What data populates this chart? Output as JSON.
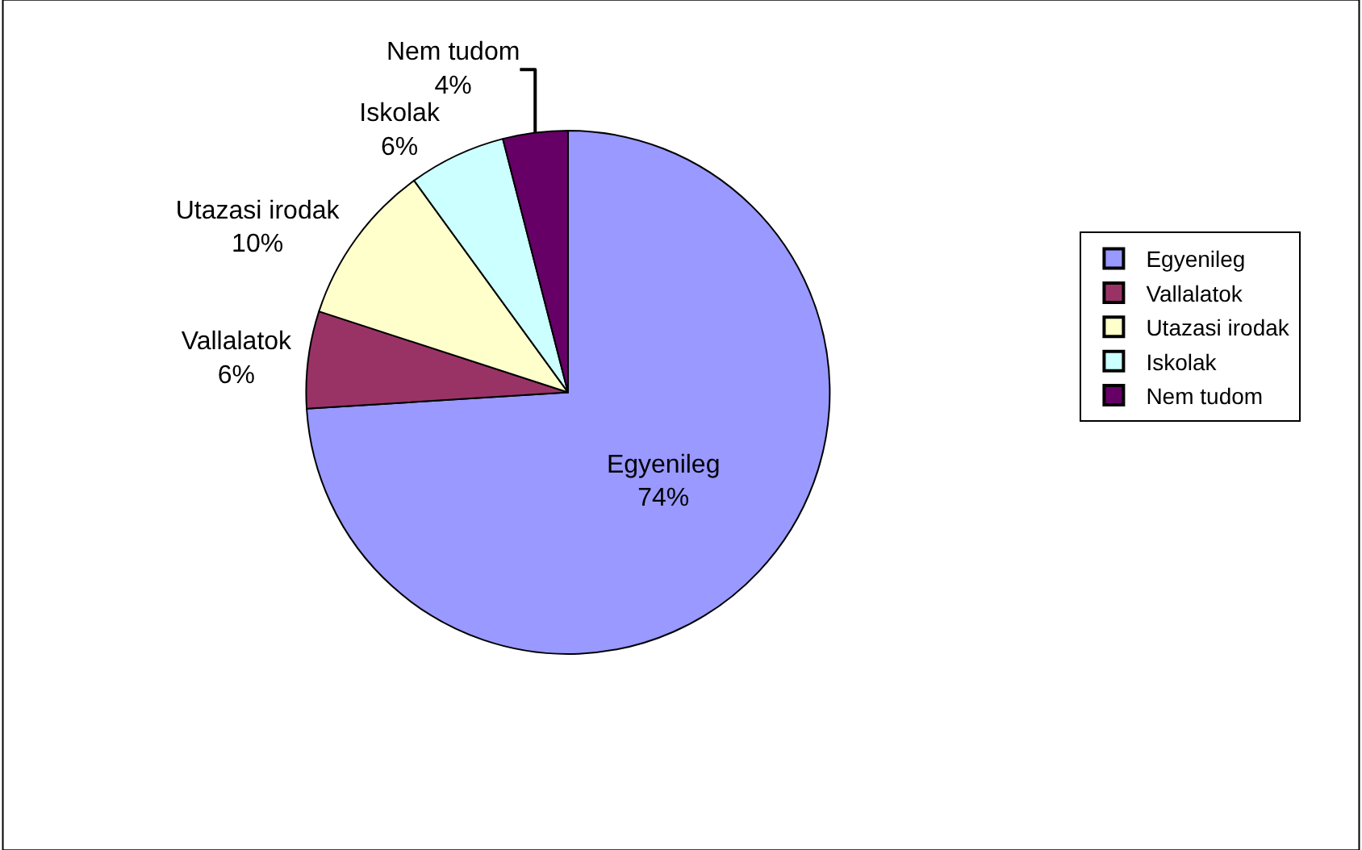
{
  "chart_data": {
    "type": "pie",
    "categories": [
      "Egyenileg",
      "Vallalatok",
      "Utazasi irodak",
      "Iskolak",
      "Nem tudom"
    ],
    "values": [
      74,
      6,
      10,
      6,
      4
    ],
    "value_labels": [
      "74%",
      "6%",
      "10%",
      "6%",
      "4%"
    ],
    "colors": [
      "#9999ff",
      "#993366",
      "#ffffcc",
      "#ccffff",
      "#660066"
    ],
    "legend": "right"
  }
}
